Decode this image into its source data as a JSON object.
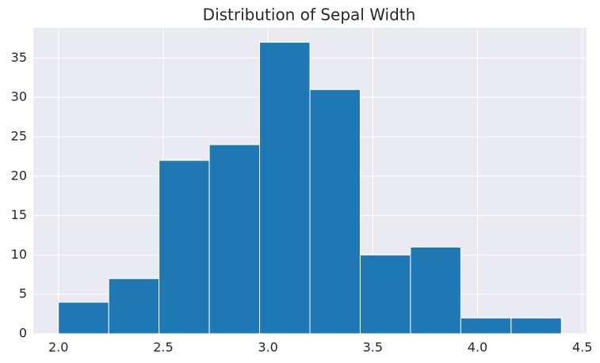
{
  "chart_data": {
    "type": "histogram",
    "title": "Distribution of Sepal Width",
    "bins": [
      2.0,
      2.24,
      2.48,
      2.72,
      2.96,
      3.2,
      3.44,
      3.68,
      3.92,
      4.16,
      4.4
    ],
    "values": [
      4,
      7,
      22,
      24,
      37,
      31,
      10,
      11,
      2,
      2
    ],
    "color": "#1f77b4",
    "xlim": [
      1.88,
      4.52
    ],
    "xticks": [
      {
        "value": 2,
        "label": "2.0"
      },
      2.5,
      {
        "value": 3,
        "label": "3.0"
      },
      3.5,
      {
        "value": 4,
        "label": "4.0"
      },
      4.5
    ],
    "ylim": [
      0,
      38.85
    ],
    "yticks": [
      0,
      5,
      10,
      15,
      20,
      25,
      30,
      35
    ],
    "grid": true
  }
}
